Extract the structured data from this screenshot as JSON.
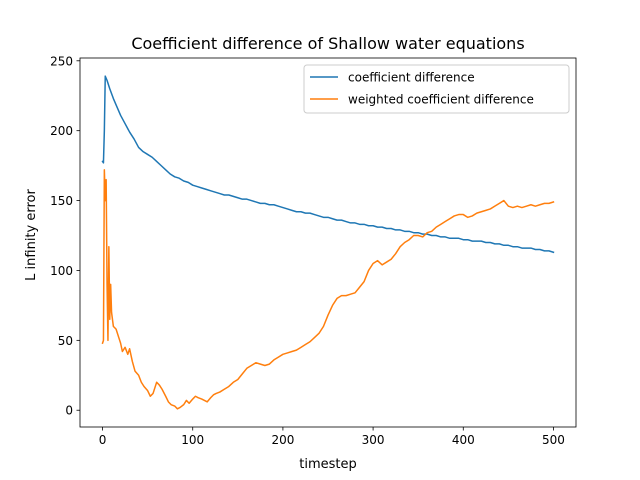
{
  "chart_data": {
    "type": "line",
    "title": "Coefficient difference of Shallow water equations",
    "xlabel": "timestep",
    "ylabel": "L infinity error",
    "xlim": [
      -25,
      525
    ],
    "ylim": [
      -12,
      252
    ],
    "xticks": [
      0,
      100,
      200,
      300,
      400,
      500
    ],
    "yticks": [
      0,
      50,
      100,
      150,
      200,
      250
    ],
    "grid": false,
    "legend_position": "top-right",
    "series": [
      {
        "name": "coefficient difference",
        "color": "#1f77b4",
        "points": [
          [
            0,
            178
          ],
          [
            1,
            177
          ],
          [
            2,
            200
          ],
          [
            3,
            239
          ],
          [
            5,
            236
          ],
          [
            8,
            230
          ],
          [
            12,
            223
          ],
          [
            16,
            217
          ],
          [
            20,
            211
          ],
          [
            25,
            205
          ],
          [
            30,
            199
          ],
          [
            35,
            194
          ],
          [
            40,
            188
          ],
          [
            45,
            185
          ],
          [
            50,
            183
          ],
          [
            55,
            181
          ],
          [
            60,
            178
          ],
          [
            65,
            175
          ],
          [
            70,
            172
          ],
          [
            75,
            169
          ],
          [
            80,
            167
          ],
          [
            85,
            166
          ],
          [
            90,
            164
          ],
          [
            95,
            163
          ],
          [
            100,
            161
          ],
          [
            105,
            160
          ],
          [
            110,
            159
          ],
          [
            115,
            158
          ],
          [
            120,
            157
          ],
          [
            125,
            156
          ],
          [
            130,
            155
          ],
          [
            135,
            154
          ],
          [
            140,
            154
          ],
          [
            145,
            153
          ],
          [
            150,
            152
          ],
          [
            155,
            151
          ],
          [
            160,
            151
          ],
          [
            165,
            150
          ],
          [
            170,
            149
          ],
          [
            175,
            148
          ],
          [
            180,
            148
          ],
          [
            185,
            147
          ],
          [
            190,
            147
          ],
          [
            195,
            146
          ],
          [
            200,
            145
          ],
          [
            205,
            144
          ],
          [
            210,
            143
          ],
          [
            215,
            142
          ],
          [
            220,
            142
          ],
          [
            225,
            141
          ],
          [
            230,
            141
          ],
          [
            235,
            140
          ],
          [
            240,
            139
          ],
          [
            245,
            138
          ],
          [
            250,
            138
          ],
          [
            255,
            137
          ],
          [
            260,
            136
          ],
          [
            265,
            136
          ],
          [
            270,
            135
          ],
          [
            275,
            134
          ],
          [
            280,
            134
          ],
          [
            285,
            133
          ],
          [
            290,
            133
          ],
          [
            295,
            132
          ],
          [
            300,
            132
          ],
          [
            305,
            131
          ],
          [
            310,
            131
          ],
          [
            315,
            130
          ],
          [
            320,
            130
          ],
          [
            325,
            129
          ],
          [
            330,
            129
          ],
          [
            335,
            128
          ],
          [
            340,
            128
          ],
          [
            345,
            127
          ],
          [
            350,
            127
          ],
          [
            355,
            126
          ],
          [
            360,
            126
          ],
          [
            365,
            125
          ],
          [
            370,
            125
          ],
          [
            375,
            124
          ],
          [
            380,
            124
          ],
          [
            385,
            123
          ],
          [
            390,
            123
          ],
          [
            395,
            123
          ],
          [
            400,
            122
          ],
          [
            405,
            122
          ],
          [
            410,
            121
          ],
          [
            415,
            121
          ],
          [
            420,
            121
          ],
          [
            425,
            120
          ],
          [
            430,
            120
          ],
          [
            435,
            119
          ],
          [
            440,
            119
          ],
          [
            445,
            118
          ],
          [
            450,
            118
          ],
          [
            455,
            117
          ],
          [
            460,
            117
          ],
          [
            465,
            116
          ],
          [
            470,
            116
          ],
          [
            475,
            116
          ],
          [
            480,
            115
          ],
          [
            485,
            115
          ],
          [
            490,
            114
          ],
          [
            495,
            114
          ],
          [
            500,
            113
          ]
        ]
      },
      {
        "name": "weighted coefficient difference",
        "color": "#ff7f0e",
        "points": [
          [
            0,
            48
          ],
          [
            1,
            50
          ],
          [
            2,
            172
          ],
          [
            3,
            150
          ],
          [
            4,
            165
          ],
          [
            5,
            90
          ],
          [
            6,
            50
          ],
          [
            7,
            117
          ],
          [
            8,
            65
          ],
          [
            9,
            90
          ],
          [
            10,
            70
          ],
          [
            12,
            60
          ],
          [
            15,
            58
          ],
          [
            18,
            52
          ],
          [
            20,
            48
          ],
          [
            22,
            42
          ],
          [
            25,
            45
          ],
          [
            28,
            40
          ],
          [
            30,
            44
          ],
          [
            33,
            35
          ],
          [
            36,
            28
          ],
          [
            40,
            25
          ],
          [
            43,
            20
          ],
          [
            46,
            17
          ],
          [
            50,
            14
          ],
          [
            53,
            10
          ],
          [
            56,
            12
          ],
          [
            60,
            20
          ],
          [
            63,
            18
          ],
          [
            66,
            15
          ],
          [
            70,
            10
          ],
          [
            73,
            6
          ],
          [
            76,
            4
          ],
          [
            80,
            3
          ],
          [
            83,
            1
          ],
          [
            86,
            2
          ],
          [
            90,
            4
          ],
          [
            93,
            7
          ],
          [
            96,
            5
          ],
          [
            100,
            8
          ],
          [
            103,
            10
          ],
          [
            106,
            9
          ],
          [
            110,
            8
          ],
          [
            113,
            7
          ],
          [
            116,
            6
          ],
          [
            120,
            9
          ],
          [
            123,
            11
          ],
          [
            126,
            12
          ],
          [
            130,
            13
          ],
          [
            135,
            15
          ],
          [
            140,
            17
          ],
          [
            145,
            20
          ],
          [
            150,
            22
          ],
          [
            155,
            26
          ],
          [
            160,
            30
          ],
          [
            165,
            32
          ],
          [
            170,
            34
          ],
          [
            175,
            33
          ],
          [
            180,
            32
          ],
          [
            185,
            33
          ],
          [
            190,
            36
          ],
          [
            195,
            38
          ],
          [
            200,
            40
          ],
          [
            205,
            41
          ],
          [
            210,
            42
          ],
          [
            215,
            43
          ],
          [
            220,
            45
          ],
          [
            225,
            47
          ],
          [
            230,
            49
          ],
          [
            235,
            52
          ],
          [
            240,
            55
          ],
          [
            245,
            60
          ],
          [
            250,
            68
          ],
          [
            255,
            75
          ],
          [
            260,
            80
          ],
          [
            265,
            82
          ],
          [
            270,
            82
          ],
          [
            275,
            83
          ],
          [
            280,
            84
          ],
          [
            285,
            88
          ],
          [
            290,
            92
          ],
          [
            295,
            100
          ],
          [
            300,
            105
          ],
          [
            305,
            107
          ],
          [
            310,
            104
          ],
          [
            315,
            106
          ],
          [
            320,
            108
          ],
          [
            325,
            112
          ],
          [
            330,
            117
          ],
          [
            335,
            120
          ],
          [
            340,
            122
          ],
          [
            345,
            125
          ],
          [
            350,
            125
          ],
          [
            355,
            124
          ],
          [
            360,
            127
          ],
          [
            365,
            128
          ],
          [
            370,
            131
          ],
          [
            375,
            133
          ],
          [
            380,
            135
          ],
          [
            385,
            137
          ],
          [
            390,
            139
          ],
          [
            395,
            140
          ],
          [
            400,
            140
          ],
          [
            405,
            138
          ],
          [
            410,
            139
          ],
          [
            415,
            141
          ],
          [
            420,
            142
          ],
          [
            425,
            143
          ],
          [
            430,
            144
          ],
          [
            435,
            146
          ],
          [
            440,
            148
          ],
          [
            445,
            150
          ],
          [
            450,
            146
          ],
          [
            455,
            145
          ],
          [
            460,
            146
          ],
          [
            465,
            145
          ],
          [
            470,
            146
          ],
          [
            475,
            147
          ],
          [
            480,
            146
          ],
          [
            485,
            147
          ],
          [
            490,
            148
          ],
          [
            495,
            148
          ],
          [
            500,
            149
          ]
        ]
      }
    ]
  }
}
